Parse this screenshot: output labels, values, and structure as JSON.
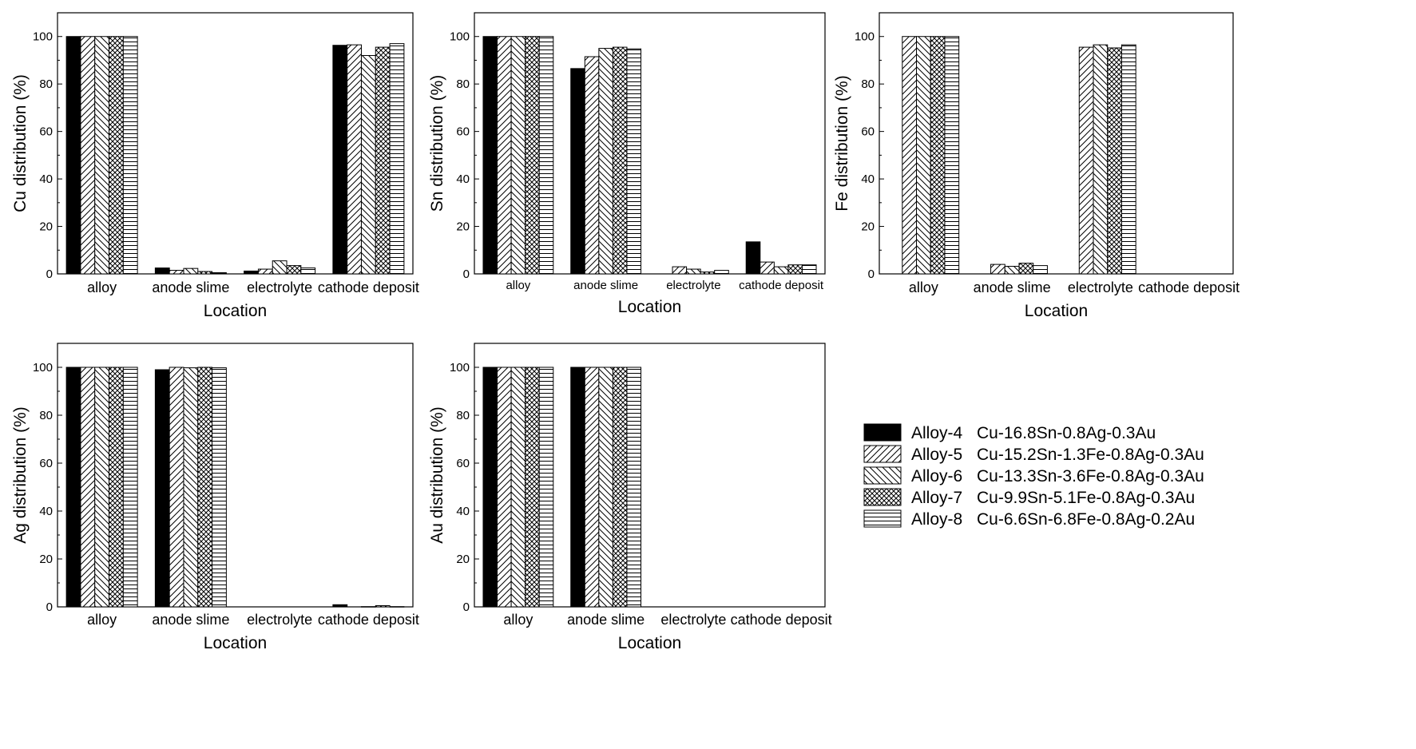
{
  "legend": [
    {
      "alloy": "Alloy-4",
      "composition": "Cu-16.8Sn-0.8Ag-0.3Au",
      "fill": "black"
    },
    {
      "alloy": "Alloy-5",
      "composition": "Cu-15.2Sn-1.3Fe-0.8Ag-0.3Au",
      "fill": "diag-fwd"
    },
    {
      "alloy": "Alloy-6",
      "composition": "Cu-13.3Sn-3.6Fe-0.8Ag-0.3Au",
      "fill": "diag-back"
    },
    {
      "alloy": "Alloy-7",
      "composition": "Cu-9.9Sn-5.1Fe-0.8Ag-0.3Au",
      "fill": "crosshatch"
    },
    {
      "alloy": "Alloy-8",
      "composition": "Cu-6.6Sn-6.8Fe-0.8Ag-0.2Au",
      "fill": "horizontal"
    }
  ],
  "chart_data": [
    {
      "type": "bar",
      "xlabel": "Location",
      "ylabel": "Cu distribution (%)",
      "ylim": [
        0,
        110
      ],
      "yticks": [
        0,
        20,
        40,
        60,
        80,
        100
      ],
      "categories": [
        "alloy",
        "anode slime",
        "electrolyte",
        "cathode deposit"
      ],
      "series": [
        {
          "name": "Alloy-4",
          "values": [
            100,
            2.5,
            1.2,
            96.3
          ]
        },
        {
          "name": "Alloy-5",
          "values": [
            100,
            1.5,
            2.0,
            96.5
          ]
        },
        {
          "name": "Alloy-6",
          "values": [
            100,
            2.3,
            5.5,
            92.0
          ]
        },
        {
          "name": "Alloy-7",
          "values": [
            100,
            1.0,
            3.5,
            95.5
          ]
        },
        {
          "name": "Alloy-8",
          "values": [
            100,
            0.5,
            2.5,
            97.0
          ]
        }
      ]
    },
    {
      "type": "bar",
      "xlabel": "Location",
      "ylabel": "Sn distribution (%)",
      "ylim": [
        0,
        110
      ],
      "yticks": [
        0,
        20,
        40,
        60,
        80,
        100
      ],
      "categories": [
        "alloy",
        "anode slime",
        "electrolyte",
        "cathode deposit"
      ],
      "series": [
        {
          "name": "Alloy-4",
          "values": [
            100,
            86.5,
            0,
            13.5
          ]
        },
        {
          "name": "Alloy-5",
          "values": [
            100,
            91.5,
            3.0,
            5.0
          ]
        },
        {
          "name": "Alloy-6",
          "values": [
            100,
            95.0,
            2.0,
            3.0
          ]
        },
        {
          "name": "Alloy-7",
          "values": [
            100,
            95.5,
            0.8,
            3.8
          ]
        },
        {
          "name": "Alloy-8",
          "values": [
            100,
            94.8,
            1.5,
            3.8
          ]
        }
      ]
    },
    {
      "type": "bar",
      "xlabel": "Location",
      "ylabel": "Fe distribution (%)",
      "ylim": [
        0,
        110
      ],
      "yticks": [
        0,
        20,
        40,
        60,
        80,
        100
      ],
      "categories": [
        "alloy",
        "anode slime",
        "electrolyte",
        "cathode deposit"
      ],
      "series": [
        {
          "name": "Alloy-4",
          "values": [
            0,
            0,
            0,
            0
          ]
        },
        {
          "name": "Alloy-5",
          "values": [
            100,
            4.0,
            95.5,
            0
          ]
        },
        {
          "name": "Alloy-6",
          "values": [
            100,
            3.2,
            96.5,
            0
          ]
        },
        {
          "name": "Alloy-7",
          "values": [
            100,
            4.5,
            95.2,
            0
          ]
        },
        {
          "name": "Alloy-8",
          "values": [
            100,
            3.5,
            96.5,
            0
          ]
        }
      ]
    },
    {
      "type": "bar",
      "xlabel": "Location",
      "ylabel": "Ag distribution (%)",
      "ylim": [
        0,
        110
      ],
      "yticks": [
        0,
        20,
        40,
        60,
        80,
        100
      ],
      "categories": [
        "alloy",
        "anode slime",
        "electrolyte",
        "cathode deposit"
      ],
      "series": [
        {
          "name": "Alloy-4",
          "values": [
            100,
            99.0,
            0,
            0.9
          ]
        },
        {
          "name": "Alloy-5",
          "values": [
            100,
            100,
            0,
            0
          ]
        },
        {
          "name": "Alloy-6",
          "values": [
            100,
            99.8,
            0,
            0.1
          ]
        },
        {
          "name": "Alloy-7",
          "values": [
            100,
            100,
            0,
            0.5
          ]
        },
        {
          "name": "Alloy-8",
          "values": [
            100,
            99.8,
            0,
            0.1
          ]
        }
      ]
    },
    {
      "type": "bar",
      "xlabel": "Location",
      "ylabel": "Au distribution (%)",
      "ylim": [
        0,
        110
      ],
      "yticks": [
        0,
        20,
        40,
        60,
        80,
        100
      ],
      "categories": [
        "alloy",
        "anode slime",
        "electrolyte",
        "cathode deposit"
      ],
      "series": [
        {
          "name": "Alloy-4",
          "values": [
            100,
            100,
            0,
            0
          ]
        },
        {
          "name": "Alloy-5",
          "values": [
            100,
            100,
            0,
            0
          ]
        },
        {
          "name": "Alloy-6",
          "values": [
            100,
            100,
            0,
            0
          ]
        },
        {
          "name": "Alloy-7",
          "values": [
            100,
            100,
            0,
            0
          ]
        },
        {
          "name": "Alloy-8",
          "values": [
            100,
            100,
            0,
            0
          ]
        }
      ]
    }
  ]
}
